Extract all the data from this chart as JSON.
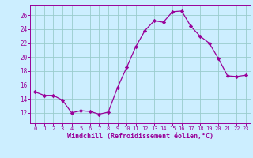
{
  "x": [
    0,
    1,
    2,
    3,
    4,
    5,
    6,
    7,
    8,
    9,
    10,
    11,
    12,
    13,
    14,
    15,
    16,
    17,
    18,
    19,
    20,
    21,
    22,
    23
  ],
  "y": [
    15.0,
    14.5,
    14.5,
    13.8,
    12.0,
    12.3,
    12.2,
    11.8,
    12.1,
    15.6,
    18.5,
    21.5,
    23.8,
    25.2,
    25.0,
    26.5,
    26.6,
    24.4,
    23.0,
    22.0,
    19.8,
    17.3,
    17.2,
    17.4
  ],
  "line_color": "#990099",
  "marker": "D",
  "marker_size": 2.2,
  "bg_color": "#cceeff",
  "grid_color": "#99cccc",
  "xlabel": "Windchill (Refroidissement éolien,°C)",
  "xlabel_color": "#990099",
  "tick_color": "#990099",
  "ylim": [
    10.5,
    27.5
  ],
  "xlim": [
    -0.5,
    23.5
  ],
  "yticks": [
    12,
    14,
    16,
    18,
    20,
    22,
    24,
    26
  ],
  "xticks": [
    0,
    1,
    2,
    3,
    4,
    5,
    6,
    7,
    8,
    9,
    10,
    11,
    12,
    13,
    14,
    15,
    16,
    17,
    18,
    19,
    20,
    21,
    22,
    23
  ]
}
